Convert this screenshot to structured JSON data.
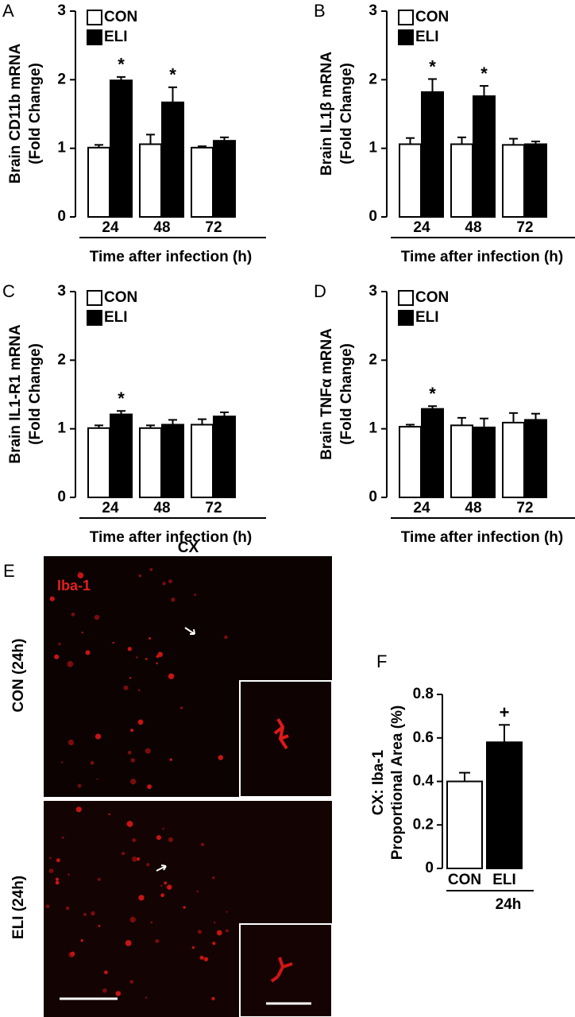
{
  "chart_data": [
    {
      "type": "bar",
      "panel_label": "A",
      "ylabel": [
        "Brain CD11b mRNA",
        "(Fold Change)"
      ],
      "xlabel": "Time after infection (h)",
      "categories": [
        "24",
        "48",
        "72"
      ],
      "ylim": [
        0,
        3
      ],
      "yticks": [
        0,
        1,
        2,
        3
      ],
      "series": [
        {
          "name": "CON",
          "color": "#ffffff",
          "values": [
            1.01,
            1.06,
            1.01
          ],
          "errors": [
            0.04,
            0.14,
            0.02
          ],
          "annotations": [
            null,
            null,
            null
          ]
        },
        {
          "name": "ELI",
          "color": "#000000",
          "values": [
            1.99,
            1.67,
            1.11
          ],
          "errors": [
            0.05,
            0.22,
            0.05
          ],
          "annotations": [
            "*",
            "*",
            null
          ]
        }
      ]
    },
    {
      "type": "bar",
      "panel_label": "B",
      "ylabel": [
        "Brain IL1β mRNA",
        "(Fold Change)"
      ],
      "xlabel": "Time after infection (h)",
      "categories": [
        "24",
        "48",
        "72"
      ],
      "ylim": [
        0,
        3
      ],
      "yticks": [
        0,
        1,
        2,
        3
      ],
      "series": [
        {
          "name": "CON",
          "color": "#ffffff",
          "values": [
            1.06,
            1.06,
            1.05
          ],
          "errors": [
            0.09,
            0.1,
            0.09
          ],
          "annotations": [
            null,
            null,
            null
          ]
        },
        {
          "name": "ELI",
          "color": "#000000",
          "values": [
            1.82,
            1.76,
            1.06
          ],
          "errors": [
            0.19,
            0.15,
            0.04
          ],
          "annotations": [
            "*",
            "*",
            null
          ]
        }
      ]
    },
    {
      "type": "bar",
      "panel_label": "C",
      "ylabel": [
        "Brain IL1-R1 mRNA",
        "(Fold Change)"
      ],
      "xlabel": "Time after infection (h)",
      "categories": [
        "24",
        "48",
        "72"
      ],
      "ylim": [
        0,
        3
      ],
      "yticks": [
        0,
        1,
        2,
        3
      ],
      "series": [
        {
          "name": "CON",
          "color": "#ffffff",
          "values": [
            1.01,
            1.01,
            1.06
          ],
          "errors": [
            0.04,
            0.04,
            0.08
          ],
          "annotations": [
            null,
            null,
            null
          ]
        },
        {
          "name": "ELI",
          "color": "#000000",
          "values": [
            1.21,
            1.06,
            1.18
          ],
          "errors": [
            0.05,
            0.07,
            0.06
          ],
          "annotations": [
            "*",
            null,
            null
          ]
        }
      ]
    },
    {
      "type": "bar",
      "panel_label": "D",
      "ylabel": [
        "Brain TNFα mRNA",
        "(Fold Change)"
      ],
      "xlabel": "Time after infection (h)",
      "categories": [
        "24",
        "48",
        "72"
      ],
      "ylim": [
        0,
        3
      ],
      "yticks": [
        0,
        1,
        2,
        3
      ],
      "series": [
        {
          "name": "CON",
          "color": "#ffffff",
          "values": [
            1.03,
            1.05,
            1.09
          ],
          "errors": [
            0.03,
            0.11,
            0.14
          ],
          "annotations": [
            null,
            null,
            null
          ]
        },
        {
          "name": "ELI",
          "color": "#000000",
          "values": [
            1.29,
            1.02,
            1.13
          ],
          "errors": [
            0.04,
            0.13,
            0.09
          ],
          "annotations": [
            "*",
            null,
            null
          ]
        }
      ]
    },
    {
      "type": "bar",
      "panel_label": "F",
      "ylabel": [
        "CX: Iba-1",
        "Proportional Area (%)"
      ],
      "xlabel": "24h",
      "categories": [
        "CON",
        "ELI"
      ],
      "ylim": [
        0,
        0.8
      ],
      "yticks": [
        0,
        0.2,
        0.4,
        0.6,
        0.8
      ],
      "values": [
        0.4,
        0.58
      ],
      "errors": [
        0.04,
        0.08
      ],
      "colors": [
        "#ffffff",
        "#000000"
      ],
      "annotations": [
        null,
        "+"
      ]
    }
  ],
  "micrograph": {
    "panel_label": "E",
    "title": "CX",
    "stain": "Iba-1",
    "rows": [
      "CON (24h)",
      "ELI (24h)"
    ]
  }
}
